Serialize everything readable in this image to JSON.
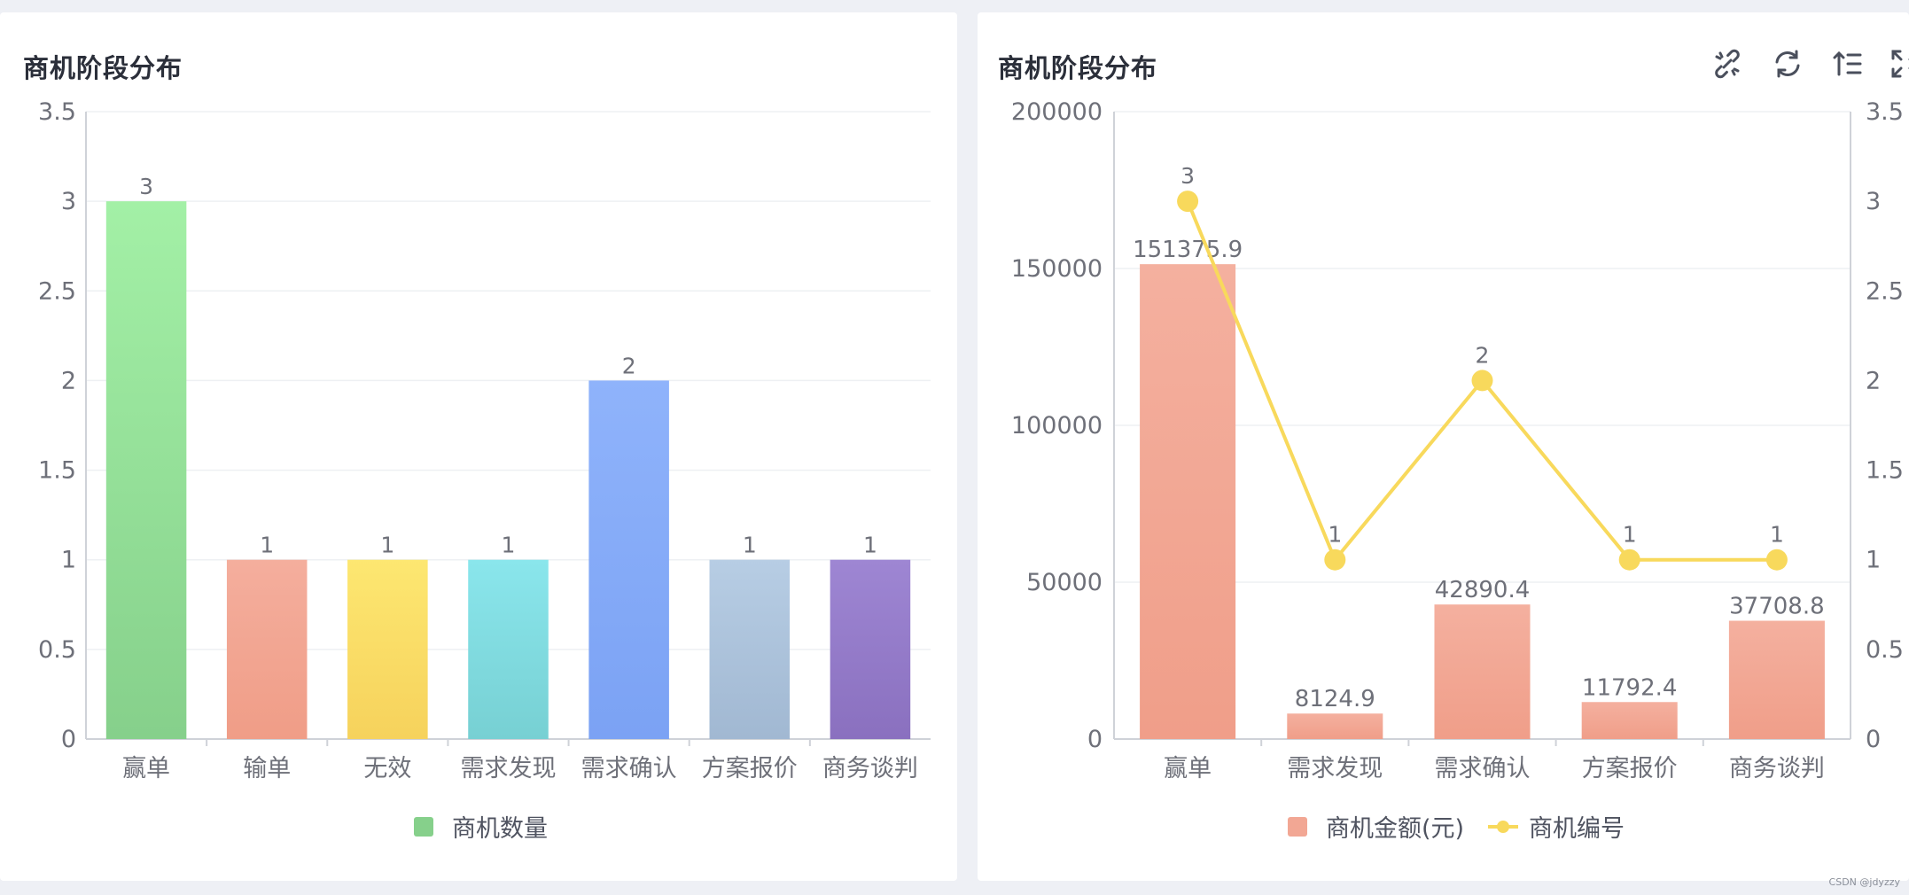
{
  "left_panel": {
    "title": "商机阶段分布"
  },
  "right_panel": {
    "title": "商机阶段分布",
    "toolbar": [
      {
        "name": "unlink-icon"
      },
      {
        "name": "refresh-icon"
      },
      {
        "name": "sort-icon"
      },
      {
        "name": "fullscreen-icon"
      }
    ]
  },
  "watermark": "CSDN @jdyzzy",
  "chart_data": [
    {
      "type": "bar",
      "title": "商机阶段分布",
      "categories": [
        "赢单",
        "输单",
        "无效",
        "需求发现",
        "需求确认",
        "方案报价",
        "商务谈判"
      ],
      "series": [
        {
          "name": "商机数量",
          "values": [
            3,
            1,
            1,
            1,
            2,
            1,
            1
          ]
        }
      ],
      "ylim": [
        0,
        3.5
      ],
      "yticks": [
        "0",
        "0.5",
        "1",
        "1.5",
        "2",
        "2.5",
        "3",
        "3.5"
      ],
      "bar_colors": [
        [
          "#a3f0a6",
          "#86d08b"
        ],
        [
          "#f4ae9d",
          "#f09d87"
        ],
        [
          "#fde771",
          "#f6d25c"
        ],
        [
          "#8ae6ec",
          "#77d0d3"
        ],
        [
          "#8fb3fb",
          "#7ba2f4"
        ],
        [
          "#b7cde4",
          "#a1b8d2"
        ],
        [
          "#9e86d3",
          "#8a70bf"
        ]
      ],
      "legend_color": "#86d08b",
      "legend_position": "bottom-center",
      "grid": true
    },
    {
      "type": "bar",
      "title": "商机阶段分布",
      "categories": [
        "赢单",
        "需求发现",
        "需求确认",
        "方案报价",
        "商务谈判"
      ],
      "series": [
        {
          "name": "商机金额(元)",
          "type": "bar",
          "axis": "left",
          "values": [
            151375.9,
            8124.9,
            42890.4,
            11792.4,
            37708.8
          ],
          "labels": [
            "151375.9",
            "8124.9",
            "42890.4",
            "11792.4",
            "37708.8"
          ],
          "color": "#f2a794"
        },
        {
          "name": "商机编号",
          "type": "line",
          "axis": "right",
          "values": [
            3,
            1,
            2,
            1,
            1
          ],
          "labels": [
            "3",
            "1",
            "2",
            "1",
            "1"
          ],
          "color": "#f8d95c"
        }
      ],
      "ylim_left": [
        0,
        200000
      ],
      "yticks_left": [
        "0",
        "50000",
        "100000",
        "150000",
        "200000"
      ],
      "ylim_right": [
        0,
        3.5
      ],
      "yticks_right": [
        "0",
        "0.5",
        "1",
        "1.5",
        "2",
        "2.5",
        "3",
        "3.5"
      ],
      "legend_position": "bottom-center",
      "grid": true
    }
  ]
}
